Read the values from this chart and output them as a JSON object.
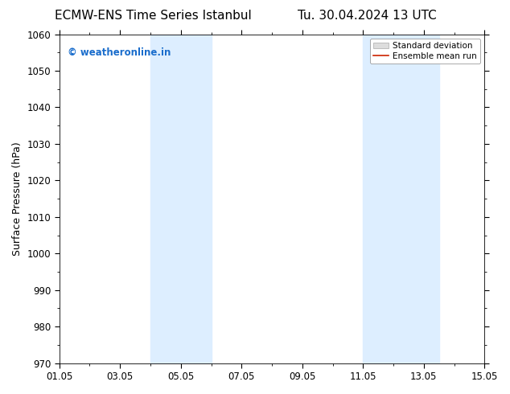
{
  "title_left": "ECMW-ENS Time Series Istanbul",
  "title_right": "Tu. 30.04.2024 13 UTC",
  "ylabel": "Surface Pressure (hPa)",
  "xlabel_ticks": [
    "01.05",
    "03.05",
    "05.05",
    "07.05",
    "09.05",
    "11.05",
    "13.05",
    "15.05"
  ],
  "xlabel_tick_positions": [
    0,
    2,
    4,
    6,
    8,
    10,
    12,
    14
  ],
  "xlim": [
    0,
    14
  ],
  "ylim": [
    970,
    1060
  ],
  "yticks": [
    970,
    980,
    990,
    1000,
    1010,
    1020,
    1030,
    1040,
    1050,
    1060
  ],
  "shaded_regions": [
    {
      "x_start": 3.0,
      "x_end": 4.0
    },
    {
      "x_start": 4.0,
      "x_end": 5.0
    },
    {
      "x_start": 10.0,
      "x_end": 11.0
    },
    {
      "x_start": 11.0,
      "x_end": 12.5
    }
  ],
  "shaded_color": "#ddeeff",
  "background_color": "#ffffff",
  "watermark_text": "© weatheronline.in",
  "watermark_color": "#1a6dcc",
  "legend_std_label": "Standard deviation",
  "legend_ens_label": "Ensemble mean run",
  "legend_std_color": "#dddddd",
  "legend_ens_color": "#cc2200",
  "title_fontsize": 11,
  "axis_label_fontsize": 9,
  "tick_fontsize": 8.5,
  "watermark_fontsize": 8.5
}
